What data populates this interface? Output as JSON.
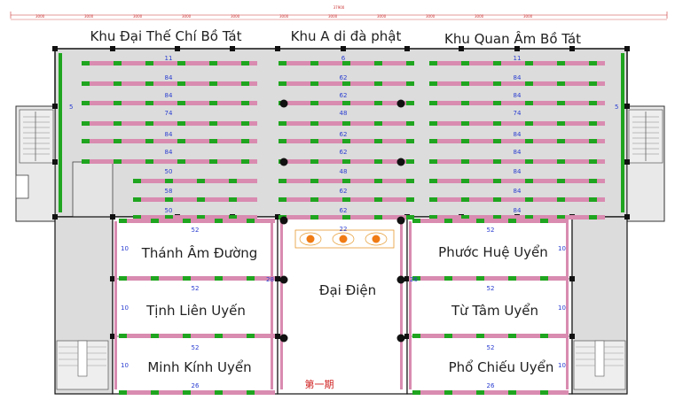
{
  "zones": {
    "left_title": "Khu Đại Thế Chí Bồ Tát",
    "center_title": "Khu A di đà phật",
    "right_title": "Khu Quan Âm Bồ Tát"
  },
  "rooms": {
    "tham_am_duong": "Thánh Âm Đường",
    "tinh_lien_uyen": "Tịnh Liên Uyến",
    "minh_kinh_uyen": "Minh Kính Uyển",
    "dai_dien": "Đại Điện",
    "phuoc_hue_uyen": "Phước Huệ Uyển",
    "tu_tam_uyen": "Từ Tâm Uyển",
    "pho_chieu_uyen": "Phổ Chiếu Uyển"
  },
  "phase_label": "第一期",
  "counts": {
    "left_rows": [
      "11",
      "84",
      "84",
      "74",
      "84",
      "84",
      "50",
      "58",
      "50"
    ],
    "center_rows": [
      "6",
      "62",
      "62",
      "48",
      "62",
      "62",
      "48",
      "62",
      "62"
    ],
    "right_rows": [
      "11",
      "84",
      "84",
      "74",
      "84",
      "84",
      "84",
      "84",
      "84"
    ],
    "side_left": "5",
    "side_right": "5",
    "wing_left_top": "52",
    "wing_left_mid": "52",
    "wing_left_bottom": "52",
    "wing_left_last": "26",
    "wing_left_side_1": "10",
    "wing_left_side_2": "10",
    "wing_left_side_3": "10",
    "wing_left_inner": "28",
    "wing_right_top": "52",
    "wing_right_mid": "52",
    "wing_right_bottom": "52",
    "wing_right_last": "26",
    "wing_right_side_1": "10",
    "wing_right_side_2": "10",
    "wing_right_side_3": "10",
    "wing_right_inner": "26",
    "hall_top": "22"
  },
  "dimensions": [
    "37900",
    "3000",
    "3000",
    "3000",
    "3000",
    "3000",
    "3000",
    "3000",
    "3000",
    "3000",
    "3000",
    "3000"
  ],
  "colors": {
    "floor": "#dcdcdc",
    "wall": "#111111",
    "shelf_pink": "#d98bb0",
    "shelf_green": "#1fa51f",
    "count_blue": "#2a3dd0",
    "lamp_orange": "#f07b14",
    "dim_red": "#cc3333"
  }
}
